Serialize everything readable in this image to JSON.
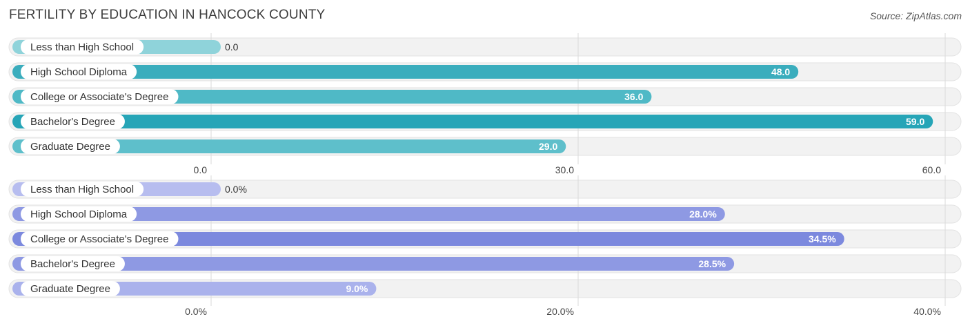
{
  "header": {
    "title": "FERTILITY BY EDUCATION IN HANCOCK COUNTY",
    "source": "Source: ZipAtlas.com"
  },
  "chart_data": [
    {
      "type": "bar",
      "orientation": "horizontal",
      "categories": [
        "Less than High School",
        "High School Diploma",
        "College or Associate's Degree",
        "Bachelor's Degree",
        "Graduate Degree"
      ],
      "values": [
        0.0,
        48.0,
        36.0,
        59.0,
        29.0
      ],
      "value_labels": [
        "0.0",
        "48.0",
        "36.0",
        "59.0",
        "29.0"
      ],
      "xlim": [
        0,
        60
      ],
      "ticks": [
        "0.0",
        "30.0",
        "60.0"
      ],
      "grid": true,
      "colors": [
        "#8fd3da",
        "#3aadbd",
        "#4fb9c6",
        "#26a5b7",
        "#5ebfcb"
      ]
    },
    {
      "type": "bar",
      "orientation": "horizontal",
      "categories": [
        "Less than High School",
        "High School Diploma",
        "College or Associate's Degree",
        "Bachelor's Degree",
        "Graduate Degree"
      ],
      "values": [
        0.0,
        28.0,
        34.5,
        28.5,
        9.0
      ],
      "value_labels": [
        "0.0%",
        "28.0%",
        "34.5%",
        "28.5%",
        "9.0%"
      ],
      "xlim": [
        0,
        40
      ],
      "ticks": [
        "0.0%",
        "20.0%",
        "40.0%"
      ],
      "grid": true,
      "colors": [
        "#b7bdef",
        "#8e99e3",
        "#7c89de",
        "#8e99e3",
        "#aab2ec"
      ]
    }
  ]
}
